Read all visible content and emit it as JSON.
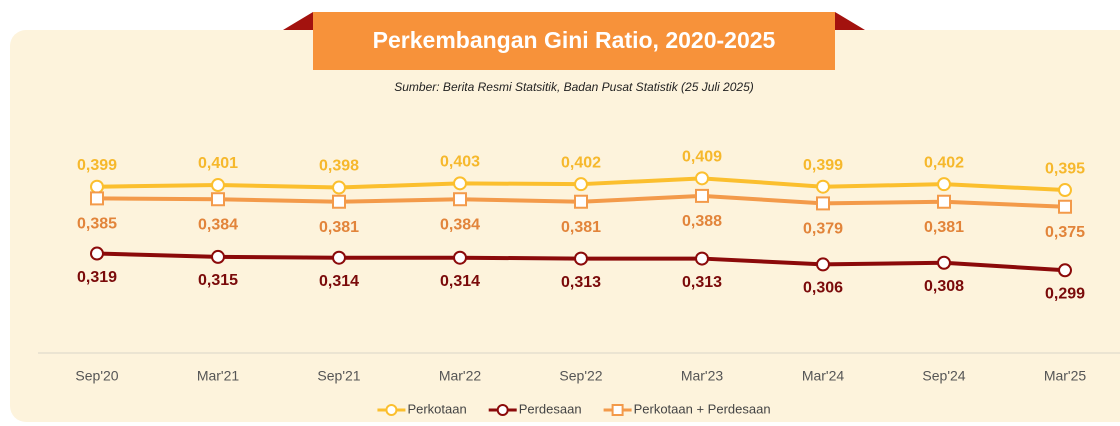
{
  "chart_data": {
    "type": "line",
    "title": "Perkembangan Gini Ratio, 2020-2025",
    "subtitle": "Sumber: Berita Resmi Statsitik, Badan Pusat Statistik (25 Juli 2025)",
    "categories": [
      "Sep'20",
      "Mar'21",
      "Sep'21",
      "Mar'22",
      "Sep'22",
      "Mar'23",
      "Mar'24",
      "Sep'24",
      "Mar'25"
    ],
    "series": [
      {
        "name": "Perkotaan",
        "color": "#fbbf2e",
        "label_color": "#f6b82c",
        "marker": "circle",
        "values": [
          0.399,
          0.401,
          0.398,
          0.403,
          0.402,
          0.409,
          0.399,
          0.402,
          0.395
        ],
        "value_labels": [
          "0,399",
          "0,401",
          "0,398",
          "0,403",
          "0,402",
          "0,409",
          "0,399",
          "0,402",
          "0,395"
        ]
      },
      {
        "name": "Perdesaan",
        "color": "#8b0a0a",
        "label_color": "#7a0a0a",
        "marker": "circle",
        "values": [
          0.319,
          0.315,
          0.314,
          0.314,
          0.313,
          0.313,
          0.306,
          0.308,
          0.299
        ],
        "value_labels": [
          "0,319",
          "0,315",
          "0,314",
          "0,314",
          "0,313",
          "0,313",
          "0,306",
          "0,308",
          "0,299"
        ]
      },
      {
        "name": "Perkotaan + Perdesaan",
        "color": "#f39a4a",
        "label_color": "#e2843a",
        "marker": "square",
        "values": [
          0.385,
          0.384,
          0.381,
          0.384,
          0.381,
          0.388,
          0.379,
          0.381,
          0.375
        ],
        "value_labels": [
          "0,385",
          "0,384",
          "0,381",
          "0,384",
          "0,381",
          "0,388",
          "0,379",
          "0,381",
          "0,375"
        ]
      }
    ],
    "ylim": [
      0.2,
      0.48
    ],
    "legend": "bottom"
  }
}
